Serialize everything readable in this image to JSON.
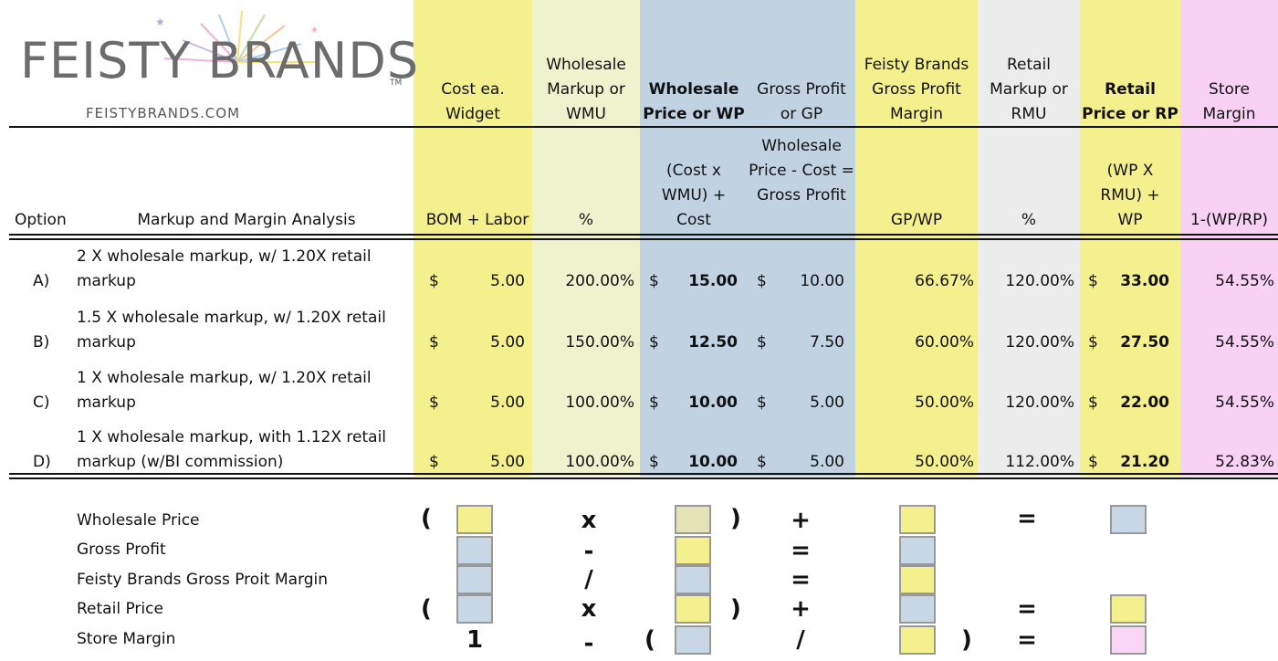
{
  "brand": {
    "name": "FEISTY BRANDS",
    "tm": "TM",
    "url": "FEISTYBRANDS.COM"
  },
  "headers": {
    "cost": "Cost ea. Widget",
    "wmu": "Wholesale Markup or WMU",
    "wp": "Wholesale Price or WP",
    "gp": "Gross Profit or GP",
    "gpm": "Feisty Brands Gross Profit Margin",
    "rmu": "Retail Markup or RMU",
    "rp": "Retail Price or RP",
    "sm": "Store Margin"
  },
  "subheaders": {
    "option": "Option",
    "analysis": "Markup and Margin Analysis",
    "cost": "BOM + Labor",
    "wmu": "%",
    "wp": "(Cost x WMU) + Cost",
    "gp": "Wholesale Price - Cost = Gross Profit",
    "gpm": "GP/WP",
    "rmu": "%",
    "rp": "(WP X RMU) + WP",
    "sm": "1-(WP/RP)"
  },
  "currency": "$",
  "rows": [
    {
      "option": "A)",
      "desc1": "2 X wholesale markup, w/ 1.20X retail",
      "desc2": "markup",
      "cost": "5.00",
      "wmu": "200.00%",
      "wp": "15.00",
      "gp": "10.00",
      "gpm": "66.67%",
      "rmu": "120.00%",
      "rp": "33.00",
      "sm": "54.55%"
    },
    {
      "option": "B)",
      "desc1": "1.5 X wholesale markup, w/ 1.20X retail",
      "desc2": "markup",
      "cost": "5.00",
      "wmu": "150.00%",
      "wp": "12.50",
      "gp": "7.50",
      "gpm": "60.00%",
      "rmu": "120.00%",
      "rp": "27.50",
      "sm": "54.55%"
    },
    {
      "option": "C)",
      "desc1": "1 X wholesale markup, w/ 1.20X retail",
      "desc2": "markup",
      "cost": "5.00",
      "wmu": "100.00%",
      "wp": "10.00",
      "gp": "5.00",
      "gpm": "50.00%",
      "rmu": "120.00%",
      "rp": "22.00",
      "sm": "54.55%"
    },
    {
      "option": "D)",
      "desc1": "1 X wholesale markup, with 1.12X retail",
      "desc2": "markup (w/BI commission)",
      "cost": "5.00",
      "wmu": "100.00%",
      "wp": "10.00",
      "gp": "5.00",
      "gpm": "50.00%",
      "rmu": "112.00%",
      "rp": "21.20",
      "sm": "52.83%"
    }
  ],
  "formulas": {
    "labels": [
      "Wholesale Price",
      "Gross Profit",
      "Feisty Brands Gross Proit Margin",
      "Retail Price",
      "Store Margin"
    ],
    "ops": {
      "open": "(",
      "close": ")",
      "times": "x",
      "minus": "-",
      "divide": "/",
      "plus": "+",
      "equals": "=",
      "one": "1"
    }
  },
  "colors": {
    "yellow": "#f5f08e",
    "light_green": "#eef3cd",
    "blue": "#c1d3e2",
    "gray": "#ececec",
    "pink": "#f9d1f5"
  }
}
